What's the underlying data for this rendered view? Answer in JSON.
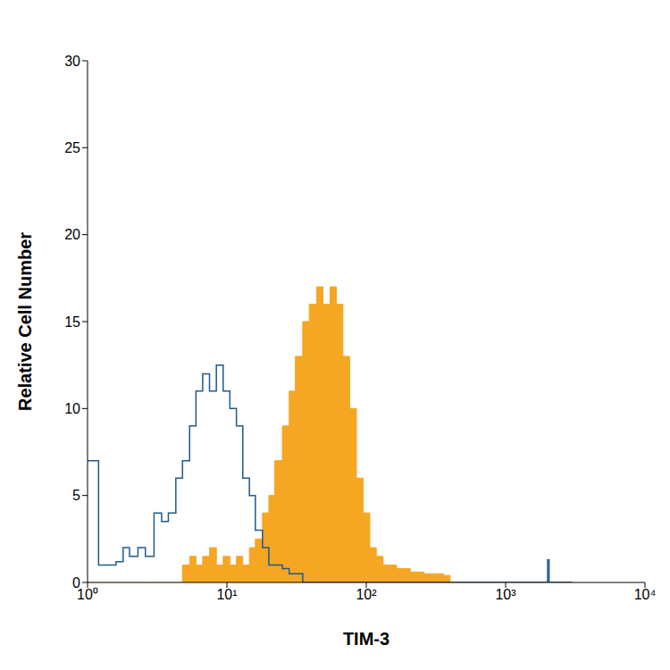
{
  "chart_data": {
    "type": "area",
    "xlabel": "TIM-3",
    "ylabel": "Relative Cell Number",
    "log": "x",
    "grid": false,
    "xlim": [
      1,
      10000
    ],
    "ylim": [
      0,
      30
    ],
    "xticks": [
      {
        "value": 1,
        "label": "10⁰"
      },
      {
        "value": 10,
        "label": "10¹"
      },
      {
        "value": 100,
        "label": "10²"
      },
      {
        "value": 1000,
        "label": "10³"
      },
      {
        "value": 10000,
        "label": "10⁴"
      }
    ],
    "yticks": [
      0,
      5,
      10,
      15,
      20,
      25,
      30
    ],
    "x": [
      1,
      1.2,
      1.4,
      1.6,
      1.8,
      2,
      2.3,
      2.6,
      3,
      3.4,
      3.8,
      4.3,
      4.8,
      5.4,
      6,
      6.7,
      7.5,
      8.4,
      9.4,
      10.5,
      11.7,
      13,
      14.5,
      16,
      18,
      20,
      22,
      25,
      28,
      31,
      35,
      39,
      44,
      49,
      55,
      61,
      68,
      76,
      85,
      95,
      106,
      118,
      132,
      148,
      165,
      185,
      207,
      230,
      260,
      290,
      320,
      360,
      400,
      450,
      500,
      700,
      1000,
      1500,
      1950,
      2000,
      2050,
      3000
    ],
    "series": [
      {
        "type": "area",
        "color": "#f5a623",
        "line_style": "step",
        "values": [
          0,
          0,
          0,
          0,
          0,
          0,
          0,
          0,
          0,
          0,
          0,
          0,
          1,
          1.5,
          1,
          1.5,
          2,
          1,
          1.5,
          1,
          1.5,
          1,
          2,
          2.5,
          4,
          5,
          7,
          9,
          11,
          13,
          15,
          16,
          17,
          16,
          17,
          16,
          13,
          10,
          6,
          4,
          2,
          1.5,
          1,
          1,
          0.8,
          0.8,
          0.6,
          0.6,
          0.5,
          0.5,
          0.5,
          0.4,
          0,
          0,
          0,
          0,
          0,
          0,
          0,
          0,
          0,
          0
        ]
      },
      {
        "type": "line",
        "color": "#1f5a8c",
        "line_style": "step",
        "values": [
          7,
          1,
          1,
          1.2,
          2,
          1.5,
          2,
          1.5,
          4,
          3.5,
          4,
          6,
          7,
          9,
          11,
          12,
          11,
          12.5,
          11,
          10,
          9,
          6,
          5,
          3,
          2,
          1,
          1,
          0.8,
          0.5,
          0.5,
          0,
          0,
          0,
          0,
          0,
          0,
          0,
          0,
          0,
          0,
          0,
          0,
          0,
          0,
          0,
          0,
          0,
          0,
          0,
          0,
          0,
          0,
          0,
          0,
          0,
          0,
          0,
          0,
          0,
          1.3,
          0,
          0
        ]
      }
    ]
  }
}
